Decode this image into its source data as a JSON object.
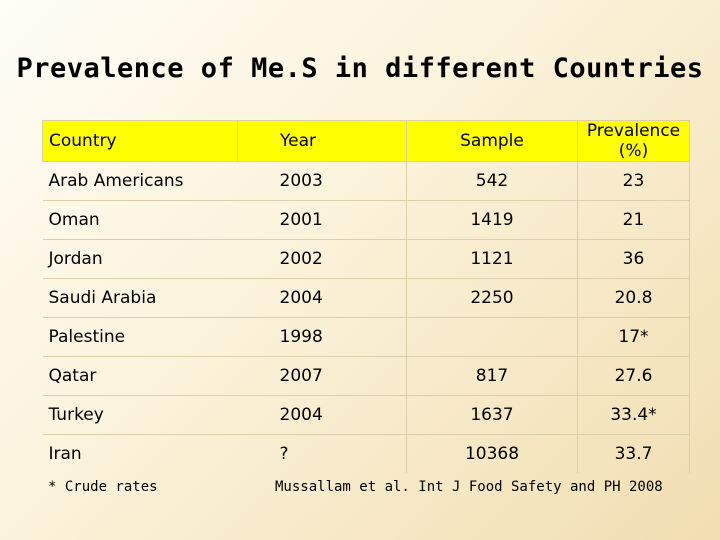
{
  "title": "Prevalence of Me.S in different Countries",
  "table": {
    "headers": [
      "Country",
      "Year",
      "Sample",
      "Prevalence (%)"
    ],
    "rows": [
      [
        "Arab Americans",
        "2003",
        "542",
        "23"
      ],
      [
        "Oman",
        "2001",
        "1419",
        "21"
      ],
      [
        "Jordan",
        "2002",
        "1121",
        "36"
      ],
      [
        "Saudi Arabia",
        "2004",
        "2250",
        "20.8"
      ],
      [
        "Palestine",
        "1998",
        "",
        "17*"
      ],
      [
        "Qatar",
        "2007",
        "817",
        "27.6"
      ],
      [
        "Turkey",
        "2004",
        "1637",
        "33.4*"
      ],
      [
        "Iran",
        "?",
        "10368",
        "33.7"
      ]
    ]
  },
  "footnote": "* Crude rates",
  "source": "Mussallam et al. Int J Food Safety and PH 2008",
  "colors": {
    "header_background": "#ffff00",
    "page_background": "#fbf2d9"
  }
}
